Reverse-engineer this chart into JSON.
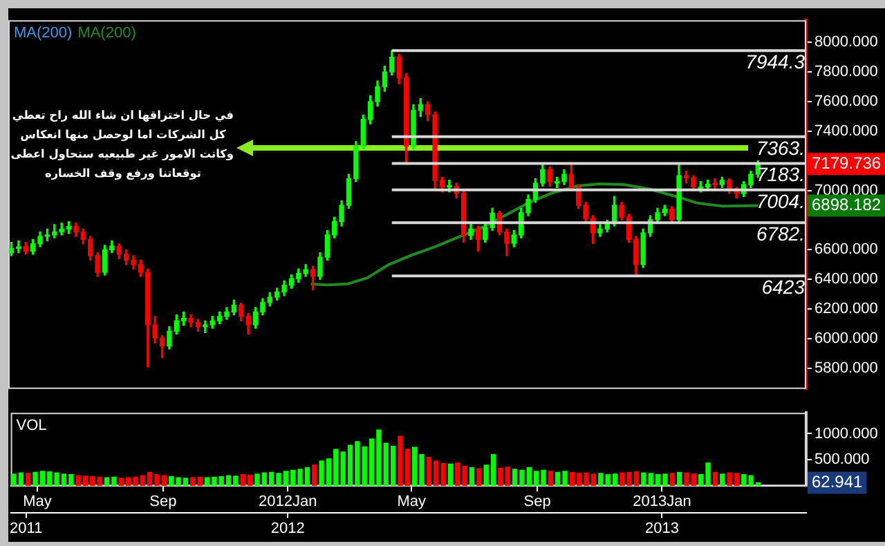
{
  "chart_data": [
    {
      "type": "candlestick",
      "title": "MA(200)",
      "legend": "top left",
      "marker": "none",
      "tick_labels": "y",
      "x": [
        "2011-04-08",
        "2011-04-15",
        "2011-04-22",
        "2011-04-29",
        "2011-05-06",
        "2011-05-13",
        "2011-05-20",
        "2011-05-27",
        "2011-06-03",
        "2011-06-10",
        "2011-06-17",
        "2011-06-24",
        "2011-07-01",
        "2011-07-08",
        "2011-07-15",
        "2011-07-22",
        "2011-07-29",
        "2011-08-05",
        "2011-08-12",
        "2011-08-19",
        "2011-08-26",
        "2011-09-02",
        "2011-09-09",
        "2011-09-16",
        "2011-09-23",
        "2011-09-30",
        "2011-10-07",
        "2011-10-14",
        "2011-10-21",
        "2011-10-28",
        "2011-11-04",
        "2011-11-11",
        "2011-11-18",
        "2011-11-25",
        "2011-12-02",
        "2011-12-09",
        "2011-12-16",
        "2011-12-23",
        "2011-12-30",
        "2012-01-06",
        "2012-01-13",
        "2012-01-20",
        "2012-01-27",
        "2012-02-03",
        "2012-02-10",
        "2012-02-17",
        "2012-02-24",
        "2012-03-02",
        "2012-03-09",
        "2012-03-16",
        "2012-03-23",
        "2012-03-30",
        "2012-04-06",
        "2012-04-13",
        "2012-04-20",
        "2012-04-27",
        "2012-05-04",
        "2012-05-11",
        "2012-05-18",
        "2012-05-25",
        "2012-06-01",
        "2012-06-08",
        "2012-06-15",
        "2012-06-22",
        "2012-06-29",
        "2012-07-06",
        "2012-07-13",
        "2012-07-20",
        "2012-07-27",
        "2012-08-03",
        "2012-08-10",
        "2012-08-17",
        "2012-08-24",
        "2012-08-31",
        "2012-09-07",
        "2012-09-14",
        "2012-09-21",
        "2012-09-28",
        "2012-10-05",
        "2012-10-12",
        "2012-10-19",
        "2012-10-26",
        "2012-11-02",
        "2012-11-09",
        "2012-11-16",
        "2012-11-23",
        "2012-11-30",
        "2012-12-07",
        "2012-12-14",
        "2012-12-21",
        "2012-12-28",
        "2013-01-04",
        "2013-01-11",
        "2013-01-18",
        "2013-01-25",
        "2013-02-01",
        "2013-02-08",
        "2013-02-15",
        "2013-02-22",
        "2013-03-01",
        "2013-03-08",
        "2013-03-15",
        "2013-03-22",
        "2013-03-29",
        "2013-04-05"
      ],
      "ohlc": [
        [
          6580,
          6650,
          6560,
          6608
        ],
        [
          6608,
          6660,
          6580,
          6620
        ],
        [
          6620,
          6650,
          6570,
          6590
        ],
        [
          6590,
          6670,
          6570,
          6640
        ],
        [
          6640,
          6720,
          6620,
          6690
        ],
        [
          6690,
          6740,
          6660,
          6700
        ],
        [
          6700,
          6770,
          6680,
          6720
        ],
        [
          6720,
          6780,
          6700,
          6740
        ],
        [
          6740,
          6790,
          6710,
          6758
        ],
        [
          6758,
          6780,
          6690,
          6720
        ],
        [
          6720,
          6740,
          6640,
          6670
        ],
        [
          6670,
          6690,
          6530,
          6560
        ],
        [
          6560,
          6580,
          6420,
          6448
        ],
        [
          6448,
          6630,
          6430,
          6600
        ],
        [
          6600,
          6660,
          6580,
          6625
        ],
        [
          6625,
          6640,
          6540,
          6570
        ],
        [
          6570,
          6600,
          6500,
          6530
        ],
        [
          6530,
          6560,
          6470,
          6500
        ],
        [
          6500,
          6530,
          6420,
          6448
        ],
        [
          6448,
          6470,
          5809,
          6093
        ],
        [
          6093,
          6150,
          5970,
          6004
        ],
        [
          6004,
          6020,
          5871,
          5950
        ],
        [
          5950,
          6080,
          5930,
          6050
        ],
        [
          6050,
          6160,
          6030,
          6120
        ],
        [
          6120,
          6180,
          6090,
          6137
        ],
        [
          6137,
          6160,
          6080,
          6110
        ],
        [
          6110,
          6130,
          6050,
          6080
        ],
        [
          6080,
          6120,
          6040,
          6093
        ],
        [
          6093,
          6150,
          6070,
          6120
        ],
        [
          6120,
          6180,
          6100,
          6150
        ],
        [
          6150,
          6210,
          6130,
          6180
        ],
        [
          6180,
          6260,
          6160,
          6226
        ],
        [
          6226,
          6240,
          6120,
          6150
        ],
        [
          6150,
          6170,
          6031,
          6093
        ],
        [
          6093,
          6210,
          6070,
          6180
        ],
        [
          6180,
          6270,
          6160,
          6244
        ],
        [
          6244,
          6310,
          6220,
          6280
        ],
        [
          6280,
          6340,
          6260,
          6315
        ],
        [
          6315,
          6390,
          6290,
          6360
        ],
        [
          6360,
          6430,
          6340,
          6404
        ],
        [
          6404,
          6470,
          6380,
          6440
        ],
        [
          6440,
          6500,
          6420,
          6466
        ],
        [
          6466,
          6490,
          6330,
          6420
        ],
        [
          6420,
          6580,
          6400,
          6550
        ],
        [
          6550,
          6730,
          6530,
          6700
        ],
        [
          6700,
          6820,
          6680,
          6790
        ],
        [
          6790,
          6930,
          6760,
          6900
        ],
        [
          6900,
          7110,
          6880,
          7080
        ],
        [
          7080,
          7330,
          7060,
          7300
        ],
        [
          7300,
          7510,
          7280,
          7480
        ],
        [
          7480,
          7640,
          7450,
          7600
        ],
        [
          7600,
          7740,
          7570,
          7700
        ],
        [
          7700,
          7840,
          7670,
          7800
        ],
        [
          7800,
          7944.3,
          7780,
          7900
        ],
        [
          7900,
          7920,
          7720,
          7760
        ],
        [
          7760,
          7790,
          7180,
          7300
        ],
        [
          7300,
          7580,
          7280,
          7540
        ],
        [
          7540,
          7620,
          7500,
          7580
        ],
        [
          7580,
          7600,
          7470,
          7512
        ],
        [
          7512,
          7530,
          7000,
          7069
        ],
        [
          7069,
          7090,
          6990,
          7024
        ],
        [
          7024,
          7070,
          6990,
          7030
        ],
        [
          7030,
          7050,
          6950,
          6980
        ],
        [
          6980,
          7000,
          6650,
          6696
        ],
        [
          6696,
          6780,
          6670,
          6740
        ],
        [
          6740,
          6760,
          6590,
          6670
        ],
        [
          6670,
          6780,
          6650,
          6750
        ],
        [
          6750,
          6880,
          6730,
          6847
        ],
        [
          6847,
          6860,
          6700,
          6720
        ],
        [
          6720,
          6740,
          6560,
          6644
        ],
        [
          6644,
          6730,
          6620,
          6700
        ],
        [
          6700,
          6880,
          6680,
          6850
        ],
        [
          6850,
          6970,
          6830,
          6940
        ],
        [
          6940,
          7080,
          6920,
          7050
        ],
        [
          7050,
          7183,
          7030,
          7140
        ],
        [
          7140,
          7160,
          7030,
          7060
        ],
        [
          7050,
          7090,
          7020,
          7060
        ],
        [
          7060,
          7140,
          7040,
          7110
        ],
        [
          7110,
          7175,
          7000,
          7020
        ],
        [
          7020,
          7040,
          6880,
          6900
        ],
        [
          6900,
          6920,
          6790,
          6810
        ],
        [
          6810,
          6830,
          6643,
          6714
        ],
        [
          6714,
          6770,
          6690,
          6740
        ],
        [
          6740,
          6800,
          6720,
          6776
        ],
        [
          6776,
          6960,
          6760,
          6900
        ],
        [
          6900,
          6920,
          6800,
          6820
        ],
        [
          6820,
          6840,
          6650,
          6670
        ],
        [
          6670,
          6690,
          6423,
          6500
        ],
        [
          6500,
          6740,
          6480,
          6714
        ],
        [
          6714,
          6830,
          6690,
          6803
        ],
        [
          6803,
          6880,
          6780,
          6850
        ],
        [
          6850,
          6900,
          6830,
          6874
        ],
        [
          6874,
          6890,
          6780,
          6803
        ],
        [
          6803,
          7183,
          6790,
          7100
        ],
        [
          7100,
          7130,
          7050,
          7086
        ],
        [
          7086,
          7100,
          7000,
          7024
        ],
        [
          7010,
          7060,
          6990,
          7024
        ],
        [
          7024,
          7070,
          7000,
          7042
        ],
        [
          7042,
          7080,
          7010,
          7040
        ],
        [
          7040,
          7090,
          7020,
          7069
        ],
        [
          7069,
          7080,
          6980,
          7000
        ],
        [
          7000,
          7020,
          6950,
          6980
        ],
        [
          6980,
          7060,
          6960,
          7040
        ],
        [
          7040,
          7130,
          7020,
          7110
        ],
        [
          7110,
          7200,
          7090,
          7179.736
        ]
      ],
      "colors": [
        "#00ff00",
        "#00ff00",
        "#ff0000",
        "#00ff00",
        "#00ff00",
        "#00ff00",
        "#00ff00",
        "#00ff00",
        "#00ff00",
        "#ff0000",
        "#ff0000",
        "#ff0000",
        "#ff0000",
        "#00ff00",
        "#00ff00",
        "#ff0000",
        "#ff0000",
        "#ff0000",
        "#ff0000",
        "#ff0000",
        "#ff0000",
        "#ff0000",
        "#00ff00",
        "#00ff00",
        "#00ff00",
        "#ff0000",
        "#ff0000",
        "#00ff00",
        "#00ff00",
        "#00ff00",
        "#00ff00",
        "#00ff00",
        "#ff0000",
        "#ff0000",
        "#00ff00",
        "#00ff00",
        "#00ff00",
        "#00ff00",
        "#00ff00",
        "#00ff00",
        "#00ff00",
        "#00ff00",
        "#ff0000",
        "#00ff00",
        "#00ff00",
        "#00ff00",
        "#00ff00",
        "#00ff00",
        "#00ff00",
        "#00ff00",
        "#00ff00",
        "#00ff00",
        "#00ff00",
        "#00ff00",
        "#ff0000",
        "#ff0000",
        "#00ff00",
        "#00ff00",
        "#ff0000",
        "#ff0000",
        "#ff0000",
        "#00ff00",
        "#ff0000",
        "#ff0000",
        "#00ff00",
        "#ff0000",
        "#00ff00",
        "#00ff00",
        "#ff0000",
        "#ff0000",
        "#00ff00",
        "#00ff00",
        "#00ff00",
        "#00ff00",
        "#00ff00",
        "#ff0000",
        "#00ff00",
        "#00ff00",
        "#ff0000",
        "#ff0000",
        "#ff0000",
        "#ff0000",
        "#00ff00",
        "#00ff00",
        "#00ff00",
        "#ff0000",
        "#ff0000",
        "#ff0000",
        "#00ff00",
        "#00ff00",
        "#00ff00",
        "#00ff00",
        "#ff0000",
        "#00ff00",
        "#ff0000",
        "#ff0000",
        "#00ff00",
        "#00ff00",
        "#ff0000",
        "#00ff00",
        "#ff0000",
        "#ff0000",
        "#00ff00",
        "#00ff00",
        "#00ff00"
      ],
      "series": [
        {
          "type": "line",
          "name": "MA(200)",
          "color": "#1f8a1f",
          "x": [
            "2012-01-25",
            "2012-02-10",
            "2012-03-01",
            "2012-03-20",
            "2012-04-10",
            "2012-05-01",
            "2012-05-25",
            "2012-06-15",
            "2012-07-10",
            "2012-08-01",
            "2012-08-25",
            "2012-09-15",
            "2012-10-10",
            "2012-11-01",
            "2012-11-25",
            "2012-12-20",
            "2013-01-15",
            "2013-02-05",
            "2013-03-01",
            "2013-04-05"
          ],
          "values": [
            6368,
            6362,
            6370,
            6410,
            6500,
            6560,
            6620,
            6680,
            6750,
            6830,
            6920,
            6980,
            7030,
            7045,
            7040,
            7010,
            6960,
            6915,
            6895,
            6898.182
          ]
        }
      ],
      "xlim": [
        "2011-04-05",
        "2013-05-22"
      ],
      "ylim": [
        5660,
        8150
      ],
      "yticks": [
        {
          "value": 5800,
          "label": "5800.000"
        },
        {
          "value": 6000,
          "label": "6000.000"
        },
        {
          "value": 6200,
          "label": "6200.000"
        },
        {
          "value": 6400,
          "label": "6400.000"
        },
        {
          "value": 6600,
          "label": "6600.000"
        },
        {
          "value": 7000,
          "label": "7000.000"
        },
        {
          "value": 7400,
          "label": "7400.000"
        },
        {
          "value": 7600,
          "label": "7600.000"
        },
        {
          "value": 7800,
          "label": "7800.000"
        },
        {
          "value": 8000,
          "label": "8000.000"
        }
      ],
      "ref_lines": [
        {
          "axis": "y",
          "value": 7944.3,
          "label": "7944.3",
          "color": "#d8d8d8"
        },
        {
          "axis": "y",
          "value": 7363,
          "label": "7363.",
          "color": "#d8d8d8"
        },
        {
          "axis": "y",
          "value": 7183,
          "label": "7183.",
          "color": "#d8d8d8"
        },
        {
          "axis": "y",
          "value": 7004,
          "label": "7004.",
          "color": "#d8d8d8"
        },
        {
          "axis": "y",
          "value": 6782,
          "label": "6782.",
          "color": "#d8d8d8"
        },
        {
          "axis": "y",
          "value": 6423,
          "label": "6423",
          "color": "#d8d8d8"
        }
      ],
      "annotations": [
        "في حال اختراقها ان شاء الله راح تعطي\nكل الشركات اما لوحصل منها انعكاس\nوكانت الامور غير طبيعيه سنحاول اعطى\nتوقعاتنا ورفع وقف الخساره",
        "7179.736",
        "6898.182"
      ]
    },
    {
      "type": "bar",
      "title": "VOL",
      "x": [
        "2011-04-08",
        "2011-04-15",
        "2011-04-22",
        "2011-04-29",
        "2011-05-06",
        "2011-05-13",
        "2011-05-20",
        "2011-05-27",
        "2011-06-03",
        "2011-06-10",
        "2011-06-17",
        "2011-06-24",
        "2011-07-01",
        "2011-07-08",
        "2011-07-15",
        "2011-07-22",
        "2011-07-29",
        "2011-08-05",
        "2011-08-12",
        "2011-08-19",
        "2011-08-26",
        "2011-09-02",
        "2011-09-09",
        "2011-09-16",
        "2011-09-23",
        "2011-09-30",
        "2011-10-07",
        "2011-10-14",
        "2011-10-21",
        "2011-10-28",
        "2011-11-04",
        "2011-11-11",
        "2011-11-18",
        "2011-11-25",
        "2011-12-02",
        "2011-12-09",
        "2011-12-16",
        "2011-12-23",
        "2011-12-30",
        "2012-01-06",
        "2012-01-13",
        "2012-01-20",
        "2012-01-27",
        "2012-02-03",
        "2012-02-10",
        "2012-02-17",
        "2012-02-24",
        "2012-03-02",
        "2012-03-09",
        "2012-03-16",
        "2012-03-23",
        "2012-03-30",
        "2012-04-06",
        "2012-04-13",
        "2012-04-20",
        "2012-04-27",
        "2012-05-04",
        "2012-05-11",
        "2012-05-18",
        "2012-05-25",
        "2012-06-01",
        "2012-06-08",
        "2012-06-15",
        "2012-06-22",
        "2012-06-29",
        "2012-07-06",
        "2012-07-13",
        "2012-07-20",
        "2012-07-27",
        "2012-08-03",
        "2012-08-10",
        "2012-08-17",
        "2012-08-24",
        "2012-08-31",
        "2012-09-07",
        "2012-09-14",
        "2012-09-21",
        "2012-09-28",
        "2012-10-05",
        "2012-10-12",
        "2012-10-19",
        "2012-10-26",
        "2012-11-02",
        "2012-11-09",
        "2012-11-16",
        "2012-11-23",
        "2012-11-30",
        "2012-12-07",
        "2012-12-14",
        "2012-12-21",
        "2012-12-28",
        "2013-01-04",
        "2013-01-11",
        "2013-01-18",
        "2013-01-25",
        "2013-02-01",
        "2013-02-08",
        "2013-02-15",
        "2013-02-22",
        "2013-03-01",
        "2013-03-08",
        "2013-03-15",
        "2013-03-22",
        "2013-03-29",
        "2013-04-05"
      ],
      "values": [
        230,
        250,
        240,
        260,
        280,
        270,
        250,
        230,
        220,
        200,
        190,
        180,
        170,
        160,
        170,
        150,
        160,
        170,
        200,
        260,
        220,
        200,
        180,
        160,
        150,
        160,
        170,
        160,
        170,
        180,
        200,
        190,
        220,
        210,
        230,
        250,
        260,
        240,
        280,
        300,
        320,
        350,
        400,
        480,
        520,
        700,
        650,
        780,
        850,
        750,
        900,
        1070,
        820,
        760,
        950,
        700,
        740,
        600,
        550,
        480,
        430,
        420,
        440,
        380,
        350,
        330,
        400,
        600,
        340,
        360,
        320,
        300,
        350,
        280,
        300,
        280,
        260,
        280,
        260,
        240,
        250,
        230,
        240,
        220,
        230,
        250,
        260,
        270,
        250,
        240,
        220,
        230,
        240,
        260,
        250,
        230,
        220,
        440,
        260,
        230,
        250,
        240,
        220,
        200,
        62.941
      ],
      "colors": [
        "#00ff00",
        "#00ff00",
        "#ff0000",
        "#00ff00",
        "#00ff00",
        "#00ff00",
        "#00ff00",
        "#00ff00",
        "#00ff00",
        "#ff0000",
        "#ff0000",
        "#ff0000",
        "#ff0000",
        "#00ff00",
        "#00ff00",
        "#ff0000",
        "#ff0000",
        "#ff0000",
        "#ff0000",
        "#ff0000",
        "#ff0000",
        "#ff0000",
        "#00ff00",
        "#00ff00",
        "#00ff00",
        "#ff0000",
        "#ff0000",
        "#00ff00",
        "#00ff00",
        "#00ff00",
        "#00ff00",
        "#00ff00",
        "#ff0000",
        "#ff0000",
        "#00ff00",
        "#00ff00",
        "#00ff00",
        "#00ff00",
        "#00ff00",
        "#00ff00",
        "#00ff00",
        "#00ff00",
        "#ff0000",
        "#00ff00",
        "#00ff00",
        "#00ff00",
        "#00ff00",
        "#00ff00",
        "#00ff00",
        "#00ff00",
        "#00ff00",
        "#00ff00",
        "#00ff00",
        "#00ff00",
        "#ff0000",
        "#ff0000",
        "#00ff00",
        "#00ff00",
        "#ff0000",
        "#ff0000",
        "#ff0000",
        "#00ff00",
        "#ff0000",
        "#ff0000",
        "#00ff00",
        "#ff0000",
        "#00ff00",
        "#00ff00",
        "#ff0000",
        "#ff0000",
        "#00ff00",
        "#00ff00",
        "#00ff00",
        "#00ff00",
        "#00ff00",
        "#ff0000",
        "#00ff00",
        "#00ff00",
        "#ff0000",
        "#ff0000",
        "#ff0000",
        "#ff0000",
        "#00ff00",
        "#00ff00",
        "#00ff00",
        "#ff0000",
        "#ff0000",
        "#ff0000",
        "#00ff00",
        "#00ff00",
        "#00ff00",
        "#00ff00",
        "#ff0000",
        "#00ff00",
        "#ff0000",
        "#ff0000",
        "#00ff00",
        "#00ff00",
        "#ff0000",
        "#00ff00",
        "#ff0000",
        "#ff0000",
        "#00ff00",
        "#00ff00",
        "#00ff00"
      ],
      "xlim": [
        "2011-04-05",
        "2013-05-22"
      ],
      "xticks": [
        {
          "value": "2011-05-01",
          "label": "May"
        },
        {
          "value": "2011-09-01",
          "label": "Sep"
        },
        {
          "value": "2012-01-01",
          "label": "2012Jan"
        },
        {
          "value": "2012-05-01",
          "label": "May"
        },
        {
          "value": "2012-09-01",
          "label": "Sep"
        },
        {
          "value": "2013-01-01",
          "label": "2013Jan"
        }
      ],
      "x2lim": [
        "2011-04-05",
        "2013-05-22"
      ],
      "x2ticks": [
        {
          "value": "2011-04-20",
          "label": "2011"
        },
        {
          "value": "2012-01-01",
          "label": "2012"
        },
        {
          "value": "2013-01-01",
          "label": "2013"
        }
      ],
      "ylim": [
        0,
        1400
      ],
      "yticks": [
        {
          "value": 500,
          "label": "500.000"
        },
        {
          "value": 1000,
          "label": "1000.000"
        }
      ],
      "annotations": [
        "62.941"
      ]
    }
  ]
}
